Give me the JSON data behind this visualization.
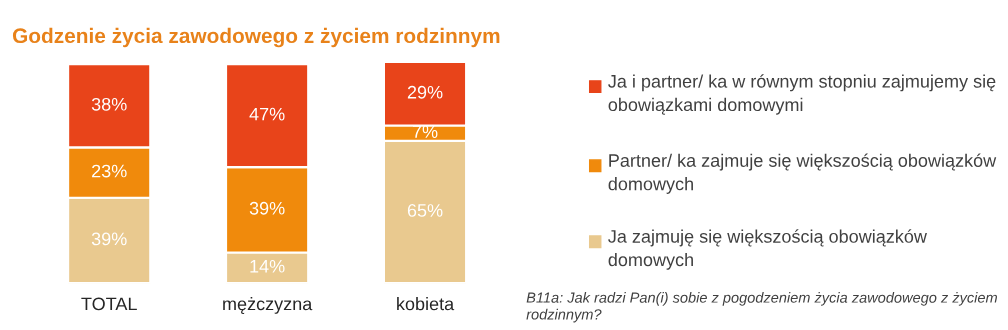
{
  "chart_data": {
    "type": "bar",
    "stacked": true,
    "tick_labels": "x",
    "ylim": [
      0,
      101
    ],
    "title": "Godzenie życia zawodowego z życiem rodzinnym",
    "categories": [
      "TOTAL",
      "mężczyzna",
      "kobieta"
    ],
    "series": [
      {
        "name": "Ja zajmuję się większością obowiązków domowych",
        "color": "#e9c98f",
        "values": [
          39,
          14,
          65
        ],
        "value_labels": [
          "39%",
          "14%",
          "65%"
        ]
      },
      {
        "name": "Partner/ ka zajmuje się większością obowiązków domowych",
        "color": "#f08a0c",
        "values": [
          23,
          39,
          7
        ],
        "value_labels": [
          "23%",
          "39%",
          "7%"
        ]
      },
      {
        "name": "Ja i partner/ ka w równym stopniu zajmujemy się obowiązkami domowymi",
        "color": "#e8441a",
        "values": [
          38,
          47,
          29
        ],
        "value_labels": [
          "38%",
          "47%",
          "29%"
        ]
      }
    ],
    "legend": "right",
    "grid": false,
    "annotations": [
      "B11a: Jak radzi Pan(i) sobie z pogodzeniem życia zawodowego z życiem rodzinnym?"
    ]
  }
}
